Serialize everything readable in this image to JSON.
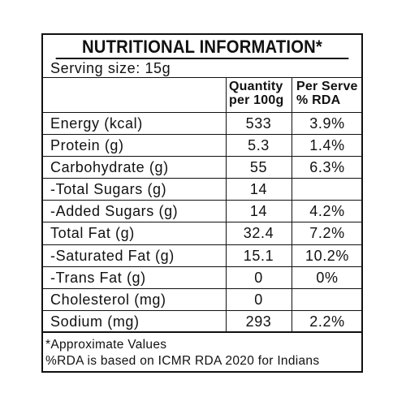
{
  "title": "NUTRITIONAL INFORMATION*",
  "serving": "Serving  size:  15g",
  "header": {
    "quantity_line1": "Quantity",
    "quantity_line2": "per 100g",
    "rda_line1": "Per Serve",
    "rda_line2": "% RDA"
  },
  "rows": [
    {
      "name": "Energy  (kcal)",
      "qty": "533",
      "rda": "3.9%"
    },
    {
      "name": "Protein  (g)",
      "qty": "5.3",
      "rda": "1.4%"
    },
    {
      "name": "Carbohydrate  (g)",
      "qty": "55",
      "rda": "6.3%"
    },
    {
      "name": "-Total  Sugars  (g)",
      "qty": "14",
      "rda": ""
    },
    {
      "name": "-Added  Sugars  (g)",
      "qty": "14",
      "rda": "4.2%"
    },
    {
      "name": "Total  Fat  (g)",
      "qty": "32.4",
      "rda": "7.2%"
    },
    {
      "name": "-Saturated  Fat  (g)",
      "qty": "15.1",
      "rda": "10.2%"
    },
    {
      "name": "-Trans  Fat  (g)",
      "qty": "0",
      "rda": "0%"
    },
    {
      "name": "Cholesterol  (mg)",
      "qty": "0",
      "rda": ""
    },
    {
      "name": "Sodium  (mg)",
      "qty": "293",
      "rda": "2.2%"
    }
  ],
  "footer": {
    "line1": "*Approximate Values",
    "line2": "%RDA is based on ICMR RDA 2020 for Indians"
  }
}
